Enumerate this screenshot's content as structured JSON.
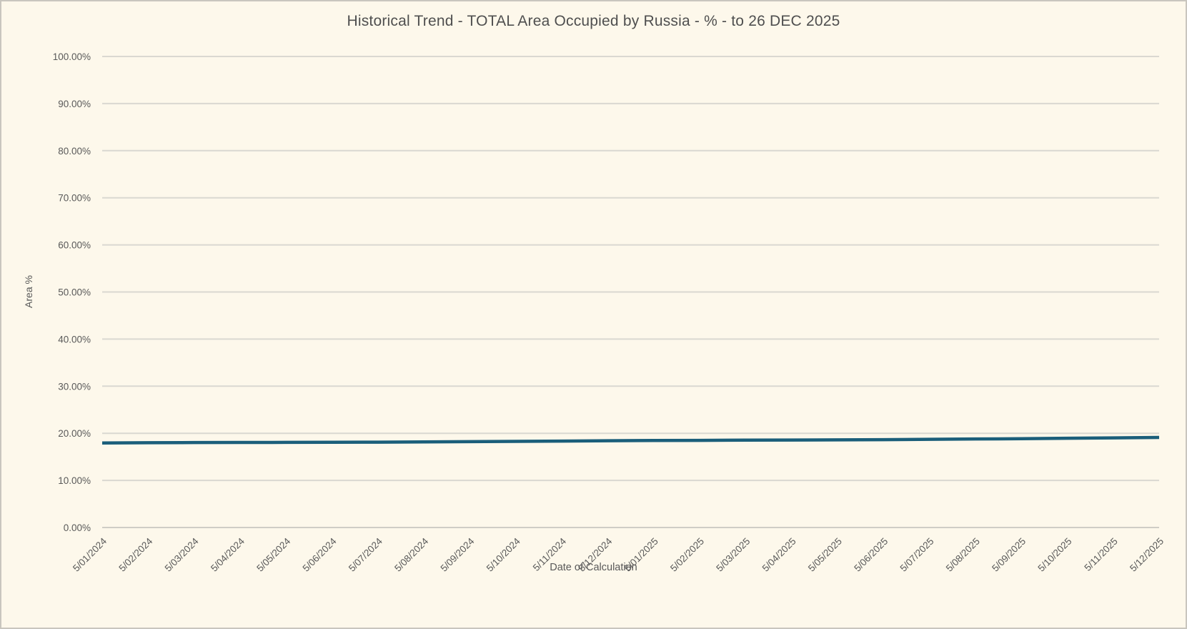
{
  "window": {
    "background": "#FDF8EB",
    "border_color": "#C9C6BE"
  },
  "colors": {
    "grid": "#DAD8D1",
    "axis_line": "#CFCDC6",
    "tick_text": "#595959",
    "title_text": "#4F4F4F",
    "line": "#1A5E7A"
  },
  "chart_data": {
    "type": "line",
    "title": "Historical Trend - TOTAL Area Occupied by Russia - % - to 26 DEC 2025",
    "xlabel": "Date of Calculation",
    "ylabel": "Area %",
    "ylim": [
      0,
      100
    ],
    "y_tick_step": 10,
    "y_tick_labels": [
      "0.00%",
      "10.00%",
      "20.00%",
      "30.00%",
      "40.00%",
      "50.00%",
      "60.00%",
      "70.00%",
      "80.00%",
      "90.00%",
      "100.00%"
    ],
    "grid": true,
    "legend_position": "none",
    "x_tick_rotation_deg": 45,
    "categories": [
      "5/01/2024",
      "5/02/2024",
      "5/03/2024",
      "5/04/2024",
      "5/05/2024",
      "5/06/2024",
      "5/07/2024",
      "5/08/2024",
      "5/09/2024",
      "5/10/2024",
      "5/11/2024",
      "5/12/2024",
      "5/01/2025",
      "5/02/2025",
      "5/03/2025",
      "5/04/2025",
      "5/05/2025",
      "5/06/2025",
      "5/07/2025",
      "5/08/2025",
      "5/09/2025",
      "5/10/2025",
      "5/11/2025",
      "5/12/2025"
    ],
    "series": [
      {
        "name": "TOTAL Area Occupied by Russia %",
        "values": [
          17.95,
          18.0,
          18.03,
          18.05,
          18.07,
          18.1,
          18.12,
          18.18,
          18.22,
          18.28,
          18.35,
          18.42,
          18.47,
          18.5,
          18.55,
          18.57,
          18.6,
          18.65,
          18.72,
          18.8,
          18.85,
          18.95,
          19.02,
          19.12
        ]
      }
    ]
  }
}
